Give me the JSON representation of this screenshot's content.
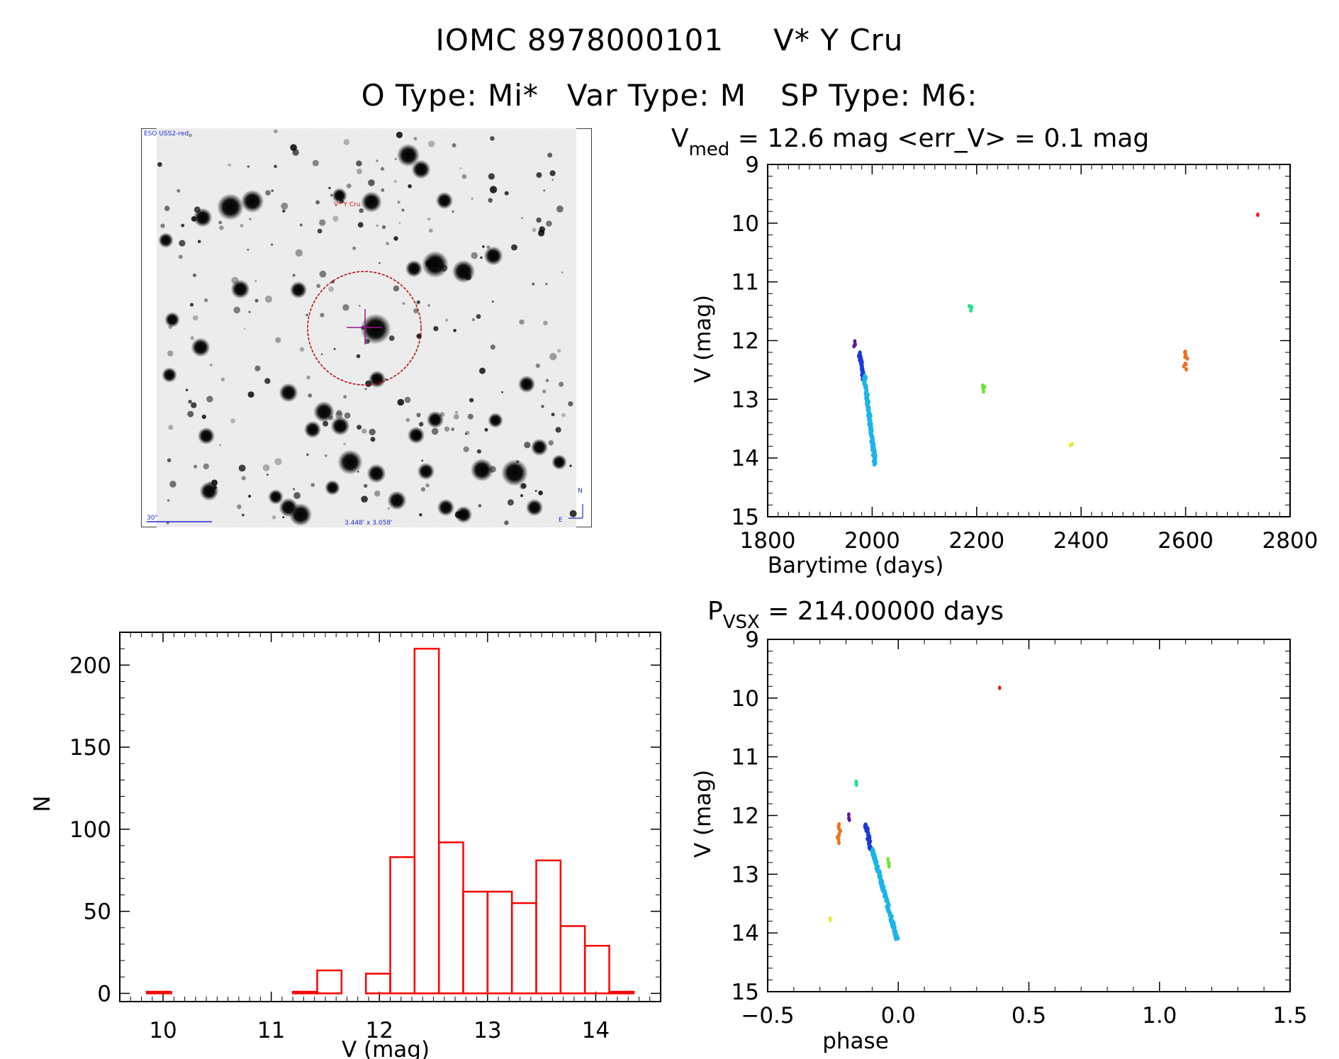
{
  "header": {
    "line1_id": "IOMC 8978000101",
    "line1_name": "V* Y Cru",
    "line2_otype": "O Type: Mi*",
    "line2_vartype": "Var Type: M",
    "line2_sptype": "SP Type: M6:"
  },
  "finder": {
    "survey_label": "ESO USS2-red",
    "target_label": "V* Y Cru",
    "scale_label": "30\"",
    "fov_label": "3.448' x 3.058'",
    "north_label": "N",
    "east_label": "E"
  },
  "colors": {
    "dark_violet": "#5a1a9a",
    "blue": "#1a3ad8",
    "cyan": "#1ab4e8",
    "green_a": "#22e08a",
    "green_b": "#66e830",
    "yellow": "#e8e830",
    "orange": "#f07020",
    "red": "#e02020",
    "hist": "#ff0000"
  },
  "chart_data": [
    {
      "type": "scatter",
      "id": "lightcurve",
      "title_main": "V",
      "title_sub": "med",
      "title_rest": " = 12.6 mag <err_V> = 0.1 mag",
      "xlabel": "Barytime (days)",
      "ylabel": "V (mag)",
      "xlim": [
        1800,
        2800
      ],
      "ylim": [
        15,
        9
      ],
      "xticks": [
        1800,
        2000,
        2200,
        2400,
        2600,
        2800
      ],
      "yticks": [
        9,
        10,
        11,
        12,
        13,
        14,
        15
      ],
      "segments": [
        {
          "color": "dark_violet",
          "x0": 1966,
          "x1": 1967,
          "y0": 12.02,
          "y1": 12.08,
          "n": 4
        },
        {
          "color": "blue",
          "x0": 1975,
          "x1": 1984,
          "y0": 12.2,
          "y1": 12.65,
          "n": 40
        },
        {
          "color": "cyan",
          "x0": 1985,
          "x1": 2006,
          "y0": 12.6,
          "y1": 14.12,
          "n": 140
        },
        {
          "color": "green_a",
          "x0": 2188,
          "x1": 2189,
          "y0": 11.42,
          "y1": 11.47,
          "n": 3
        },
        {
          "color": "green_b",
          "x0": 2214,
          "x1": 2215,
          "y0": 12.76,
          "y1": 12.86,
          "n": 4
        },
        {
          "color": "yellow",
          "x0": 2381,
          "x1": 2381,
          "y0": 13.76,
          "y1": 13.78,
          "n": 2
        },
        {
          "color": "orange",
          "x0": 2601,
          "x1": 2601,
          "y0": 12.18,
          "y1": 12.32,
          "n": 6
        },
        {
          "color": "orange",
          "x0": 2599,
          "x1": 2599,
          "y0": 12.38,
          "y1": 12.48,
          "n": 4
        },
        {
          "color": "red",
          "x0": 2739,
          "x1": 2739,
          "y0": 9.84,
          "y1": 9.84,
          "n": 1
        }
      ]
    },
    {
      "type": "scatter",
      "id": "phased",
      "title_main": "P",
      "title_sub": "VSX",
      "title_rest": " = 214.00000 days",
      "xlabel": "phase",
      "ylabel": "V (mag)",
      "xlim": [
        -0.5,
        1.5
      ],
      "ylim": [
        15,
        9
      ],
      "xticks": [
        -0.5,
        0.0,
        0.5,
        1.0,
        1.5
      ],
      "xtick_labels": [
        "−0.5",
        "0.0",
        "0.5",
        "1.0",
        "1.5"
      ],
      "yticks": [
        9,
        10,
        11,
        12,
        13,
        14,
        15
      ],
      "segments": [
        {
          "color": "red",
          "x0": 0.39,
          "x1": 0.39,
          "y0": 9.84,
          "y1": 9.84,
          "n": 1
        },
        {
          "color": "green_a",
          "x0": -0.16,
          "x1": -0.16,
          "y0": 11.42,
          "y1": 11.47,
          "n": 3
        },
        {
          "color": "dark_violet",
          "x0": -0.19,
          "x1": -0.19,
          "y0": 12.0,
          "y1": 12.06,
          "n": 3
        },
        {
          "color": "orange",
          "x0": -0.225,
          "x1": -0.225,
          "y0": 12.15,
          "y1": 12.3,
          "n": 5
        },
        {
          "color": "orange",
          "x0": -0.232,
          "x1": -0.232,
          "y0": 12.34,
          "y1": 12.48,
          "n": 5
        },
        {
          "color": "blue",
          "x0": -0.125,
          "x1": -0.105,
          "y0": 12.15,
          "y1": 12.58,
          "n": 40
        },
        {
          "color": "cyan",
          "x0": -0.1,
          "x1": -0.005,
          "y0": 12.58,
          "y1": 14.1,
          "n": 140
        },
        {
          "color": "green_b",
          "x0": -0.035,
          "x1": -0.035,
          "y0": 12.76,
          "y1": 12.86,
          "n": 4
        },
        {
          "color": "yellow",
          "x0": -0.265,
          "x1": -0.265,
          "y0": 13.76,
          "y1": 13.78,
          "n": 2
        }
      ]
    },
    {
      "type": "bar",
      "id": "histogram",
      "xlabel": "V (mag)",
      "ylabel": "N",
      "xlim": [
        9.6,
        14.6
      ],
      "ylim": [
        -5,
        220
      ],
      "xticks": [
        10,
        11,
        12,
        13,
        14
      ],
      "yticks": [
        0,
        50,
        100,
        150,
        200
      ],
      "bin_width": 0.225,
      "bins": [
        {
          "left": 9.85,
          "count": 1
        },
        {
          "left": 10.075,
          "count": 0
        },
        {
          "left": 10.3,
          "count": 0
        },
        {
          "left": 10.525,
          "count": 0
        },
        {
          "left": 10.75,
          "count": 0
        },
        {
          "left": 10.975,
          "count": 0
        },
        {
          "left": 11.2,
          "count": 1
        },
        {
          "left": 11.425,
          "count": 14
        },
        {
          "left": 11.65,
          "count": 0
        },
        {
          "left": 11.875,
          "count": 12
        },
        {
          "left": 12.1,
          "count": 83
        },
        {
          "left": 12.325,
          "count": 210
        },
        {
          "left": 12.55,
          "count": 92
        },
        {
          "left": 12.775,
          "count": 62
        },
        {
          "left": 13.0,
          "count": 62
        },
        {
          "left": 13.225,
          "count": 55
        },
        {
          "left": 13.45,
          "count": 81
        },
        {
          "left": 13.675,
          "count": 41
        },
        {
          "left": 13.9,
          "count": 29
        },
        {
          "left": 14.125,
          "count": 1
        }
      ]
    }
  ]
}
